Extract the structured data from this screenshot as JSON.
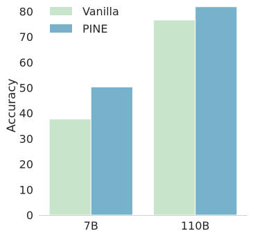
{
  "chart_data": {
    "type": "bar",
    "categories": [
      "7B",
      "110B"
    ],
    "series": [
      {
        "name": "Vanilla",
        "values": [
          37.7,
          76.6
        ],
        "color": "#c8e5cb"
      },
      {
        "name": "PINE",
        "values": [
          50.3,
          81.8
        ],
        "color": "#76b2c9"
      }
    ],
    "title": "",
    "xlabel": "",
    "ylabel": "Accuracy",
    "ylim": [
      0,
      82
    ],
    "yticks": [
      0,
      10,
      20,
      30,
      40,
      50,
      60,
      70,
      80
    ],
    "grid": false,
    "legend_position": "top-left"
  }
}
